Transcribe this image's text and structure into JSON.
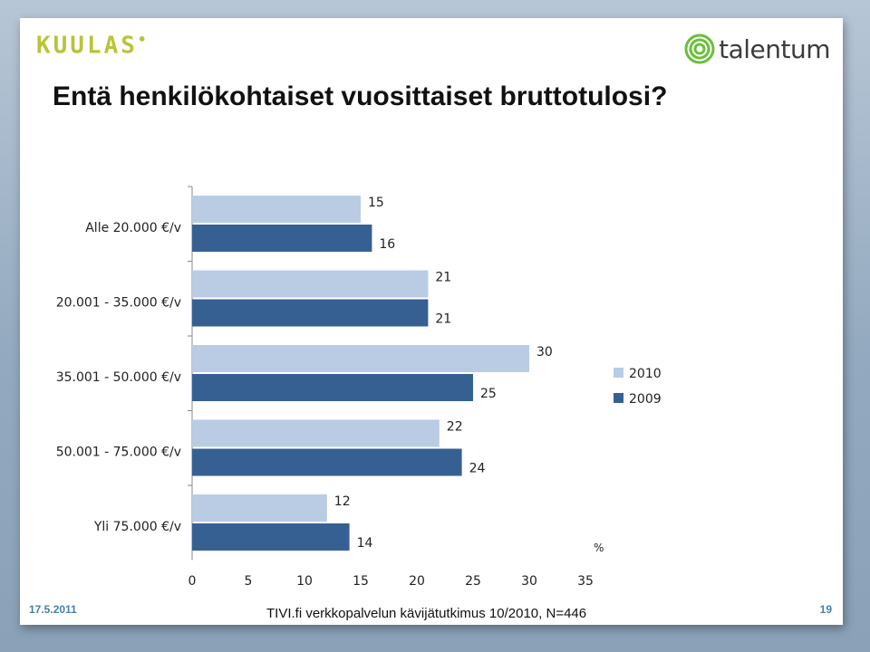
{
  "header": {
    "logo_left": "KUULAS",
    "logo_right": "talentum"
  },
  "slide": {
    "title": "Entä henkilökohtaiset vuosittaiset bruttotulosi?"
  },
  "footer": {
    "date": "17.5.2011",
    "source": "TIVI.fi verkkopalvelun kävijätutkimus 10/2010, N=446",
    "page": "19"
  },
  "colors": {
    "series_2010": "#b9cce4",
    "series_2009": "#376092",
    "logo_green": "#b9c43a"
  },
  "chart_data": {
    "type": "bar",
    "orientation": "horizontal",
    "title": "",
    "xlabel": "",
    "ylabel": "",
    "unit_label": "%",
    "categories": [
      "Alle 20.000 €/v",
      "20.001 - 35.000 €/v",
      "35.001 - 50.000 €/v",
      "50.001 - 75.000 €/v",
      "Yli 75.000 €/v"
    ],
    "series": [
      {
        "name": "2010",
        "values": [
          15,
          21,
          30,
          22,
          12
        ]
      },
      {
        "name": "2009",
        "values": [
          16,
          21,
          25,
          24,
          14
        ]
      }
    ],
    "xlim": [
      0,
      35
    ],
    "xticks": [
      0,
      5,
      10,
      15,
      20,
      25,
      30,
      35
    ],
    "grid": false,
    "legend_position": "right"
  }
}
